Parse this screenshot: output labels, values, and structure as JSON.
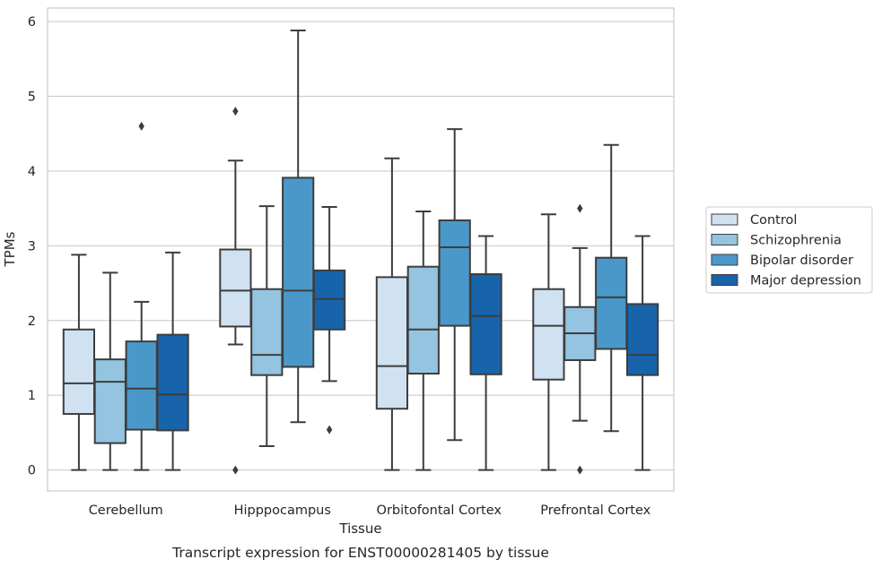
{
  "chart_data": {
    "type": "box",
    "caption": "Transcript expression for ENST00000281405 by tissue",
    "xlabel": "Tissue",
    "ylabel": "TPMs",
    "ylim": [
      -0.28,
      6.18
    ],
    "yticks": [
      0,
      1,
      2,
      3,
      4,
      5,
      6
    ],
    "grid": true,
    "legend_position": "right",
    "categories": [
      "Cerebellum",
      "Hipppocampus",
      "Orbitofontal Cortex",
      "Prefrontal Cortex"
    ],
    "series": [
      {
        "name": "Control",
        "color": "#d0e1f2",
        "boxes": [
          {
            "whislo": 0.0,
            "q1": 0.75,
            "med": 1.16,
            "q3": 1.88,
            "whishi": 2.88,
            "fliers": []
          },
          {
            "whislo": 1.68,
            "q1": 1.92,
            "med": 2.4,
            "q3": 2.95,
            "whishi": 4.14,
            "fliers": [
              4.8,
              0.0
            ]
          },
          {
            "whislo": 0.0,
            "q1": 0.82,
            "med": 1.39,
            "q3": 2.58,
            "whishi": 4.17,
            "fliers": []
          },
          {
            "whislo": 0.0,
            "q1": 1.21,
            "med": 1.93,
            "q3": 2.42,
            "whishi": 3.42,
            "fliers": []
          }
        ]
      },
      {
        "name": "Schizophrenia",
        "color": "#94c4df",
        "boxes": [
          {
            "whislo": 0.0,
            "q1": 0.36,
            "med": 1.18,
            "q3": 1.48,
            "whishi": 2.64,
            "fliers": []
          },
          {
            "whislo": 0.32,
            "q1": 1.27,
            "med": 1.54,
            "q3": 2.42,
            "whishi": 3.53,
            "fliers": []
          },
          {
            "whislo": 0.0,
            "q1": 1.29,
            "med": 1.88,
            "q3": 2.72,
            "whishi": 3.46,
            "fliers": []
          },
          {
            "whislo": 0.66,
            "q1": 1.47,
            "med": 1.83,
            "q3": 2.18,
            "whishi": 2.97,
            "fliers": [
              3.5,
              0.0
            ]
          }
        ]
      },
      {
        "name": "Bipolar disorder",
        "color": "#4a98c9",
        "boxes": [
          {
            "whislo": 0.0,
            "q1": 0.54,
            "med": 1.09,
            "q3": 1.72,
            "whishi": 2.25,
            "fliers": [
              4.6
            ]
          },
          {
            "whislo": 0.64,
            "q1": 1.38,
            "med": 2.4,
            "q3": 3.91,
            "whishi": 5.88,
            "fliers": []
          },
          {
            "whislo": 0.4,
            "q1": 1.93,
            "med": 2.98,
            "q3": 3.34,
            "whishi": 4.56,
            "fliers": []
          },
          {
            "whislo": 0.52,
            "q1": 1.62,
            "med": 2.31,
            "q3": 2.84,
            "whishi": 4.35,
            "fliers": []
          }
        ]
      },
      {
        "name": "Major depression",
        "color": "#1764ab",
        "boxes": [
          {
            "whislo": 0.0,
            "q1": 0.53,
            "med": 1.01,
            "q3": 1.81,
            "whishi": 2.91,
            "fliers": []
          },
          {
            "whislo": 1.19,
            "q1": 1.88,
            "med": 2.29,
            "q3": 2.67,
            "whishi": 3.52,
            "fliers": [
              0.54
            ]
          },
          {
            "whislo": 0.0,
            "q1": 1.28,
            "med": 2.06,
            "q3": 2.62,
            "whishi": 3.13,
            "fliers": []
          },
          {
            "whislo": 0.0,
            "q1": 1.27,
            "med": 1.54,
            "q3": 2.22,
            "whishi": 3.13,
            "fliers": []
          }
        ]
      }
    ]
  }
}
